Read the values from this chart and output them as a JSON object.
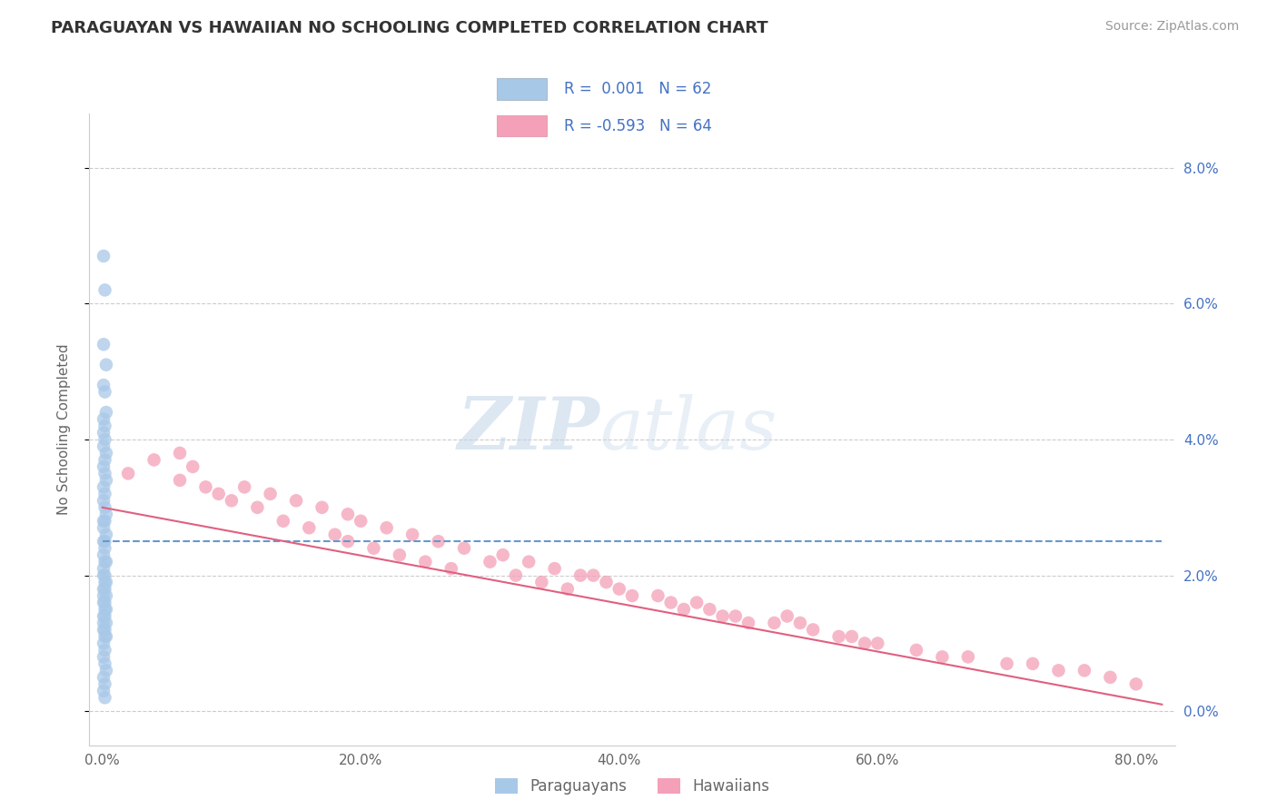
{
  "title": "PARAGUAYAN VS HAWAIIAN NO SCHOOLING COMPLETED CORRELATION CHART",
  "source": "Source: ZipAtlas.com",
  "ylabel": "No Schooling Completed",
  "xlabel_ticks": [
    "0.0%",
    "20.0%",
    "40.0%",
    "60.0%",
    "80.0%"
  ],
  "xlabel_vals": [
    0.0,
    0.2,
    0.4,
    0.6,
    0.8
  ],
  "ylabel_ticks_left": [
    "",
    "",
    "",
    "",
    ""
  ],
  "ylabel_ticks_right": [
    "0.0%",
    "2.0%",
    "4.0%",
    "6.0%",
    "8.0%"
  ],
  "ylabel_vals": [
    0.0,
    0.02,
    0.04,
    0.06,
    0.08
  ],
  "xlim": [
    -0.01,
    0.83
  ],
  "ylim": [
    -0.005,
    0.088
  ],
  "legend_blue_r": "R =  0.001",
  "legend_blue_n": "N = 62",
  "legend_pink_r": "R = -0.593",
  "legend_pink_n": "N = 64",
  "legend_bottom_blue": "Paraguayans",
  "legend_bottom_pink": "Hawaiians",
  "blue_color": "#a8c8e8",
  "pink_color": "#f4a0b8",
  "blue_line_color": "#6699cc",
  "pink_line_color": "#e06080",
  "blue_label_color": "#4472c4",
  "right_axis_color": "#4472c4",
  "grid_color": "#cccccc",
  "watermark_zip_color": "#c0d4e8",
  "watermark_atlas_color": "#c8d8ec",
  "blue_scatter_x": [
    0.001,
    0.002,
    0.001,
    0.003,
    0.001,
    0.002,
    0.003,
    0.001,
    0.002,
    0.001,
    0.002,
    0.001,
    0.003,
    0.002,
    0.001,
    0.002,
    0.003,
    0.001,
    0.002,
    0.001,
    0.002,
    0.003,
    0.001,
    0.002,
    0.001,
    0.003,
    0.002,
    0.001,
    0.002,
    0.001,
    0.002,
    0.003,
    0.001,
    0.002,
    0.001,
    0.003,
    0.002,
    0.001,
    0.002,
    0.003,
    0.001,
    0.002,
    0.001,
    0.002,
    0.003,
    0.001,
    0.002,
    0.001,
    0.003,
    0.002,
    0.001,
    0.002,
    0.003,
    0.001,
    0.002,
    0.001,
    0.002,
    0.003,
    0.001,
    0.002,
    0.001,
    0.002
  ],
  "blue_scatter_y": [
    0.067,
    0.062,
    0.054,
    0.051,
    0.048,
    0.047,
    0.044,
    0.043,
    0.042,
    0.041,
    0.04,
    0.039,
    0.038,
    0.037,
    0.036,
    0.035,
    0.034,
    0.033,
    0.032,
    0.031,
    0.03,
    0.029,
    0.028,
    0.028,
    0.027,
    0.026,
    0.025,
    0.025,
    0.024,
    0.023,
    0.022,
    0.022,
    0.021,
    0.02,
    0.02,
    0.019,
    0.019,
    0.018,
    0.018,
    0.017,
    0.017,
    0.016,
    0.016,
    0.015,
    0.015,
    0.014,
    0.014,
    0.013,
    0.013,
    0.012,
    0.012,
    0.011,
    0.011,
    0.01,
    0.009,
    0.008,
    0.007,
    0.006,
    0.005,
    0.004,
    0.003,
    0.002
  ],
  "pink_scatter_x": [
    0.02,
    0.04,
    0.06,
    0.06,
    0.07,
    0.08,
    0.09,
    0.1,
    0.11,
    0.12,
    0.13,
    0.14,
    0.15,
    0.16,
    0.17,
    0.18,
    0.19,
    0.19,
    0.2,
    0.21,
    0.22,
    0.23,
    0.24,
    0.25,
    0.26,
    0.27,
    0.28,
    0.3,
    0.31,
    0.32,
    0.33,
    0.34,
    0.35,
    0.36,
    0.37,
    0.38,
    0.39,
    0.4,
    0.41,
    0.43,
    0.44,
    0.45,
    0.46,
    0.47,
    0.48,
    0.49,
    0.5,
    0.52,
    0.53,
    0.54,
    0.55,
    0.57,
    0.58,
    0.59,
    0.6,
    0.63,
    0.65,
    0.67,
    0.7,
    0.72,
    0.74,
    0.76,
    0.78,
    0.8
  ],
  "pink_scatter_y": [
    0.035,
    0.037,
    0.038,
    0.034,
    0.036,
    0.033,
    0.032,
    0.031,
    0.033,
    0.03,
    0.032,
    0.028,
    0.031,
    0.027,
    0.03,
    0.026,
    0.029,
    0.025,
    0.028,
    0.024,
    0.027,
    0.023,
    0.026,
    0.022,
    0.025,
    0.021,
    0.024,
    0.022,
    0.023,
    0.02,
    0.022,
    0.019,
    0.021,
    0.018,
    0.02,
    0.02,
    0.019,
    0.018,
    0.017,
    0.017,
    0.016,
    0.015,
    0.016,
    0.015,
    0.014,
    0.014,
    0.013,
    0.013,
    0.014,
    0.013,
    0.012,
    0.011,
    0.011,
    0.01,
    0.01,
    0.009,
    0.008,
    0.008,
    0.007,
    0.007,
    0.006,
    0.006,
    0.005,
    0.004
  ],
  "blue_line_x": [
    0.0,
    0.82
  ],
  "blue_line_y": [
    0.025,
    0.025
  ],
  "pink_line_x": [
    0.0,
    0.82
  ],
  "pink_line_y": [
    0.03,
    0.001
  ]
}
